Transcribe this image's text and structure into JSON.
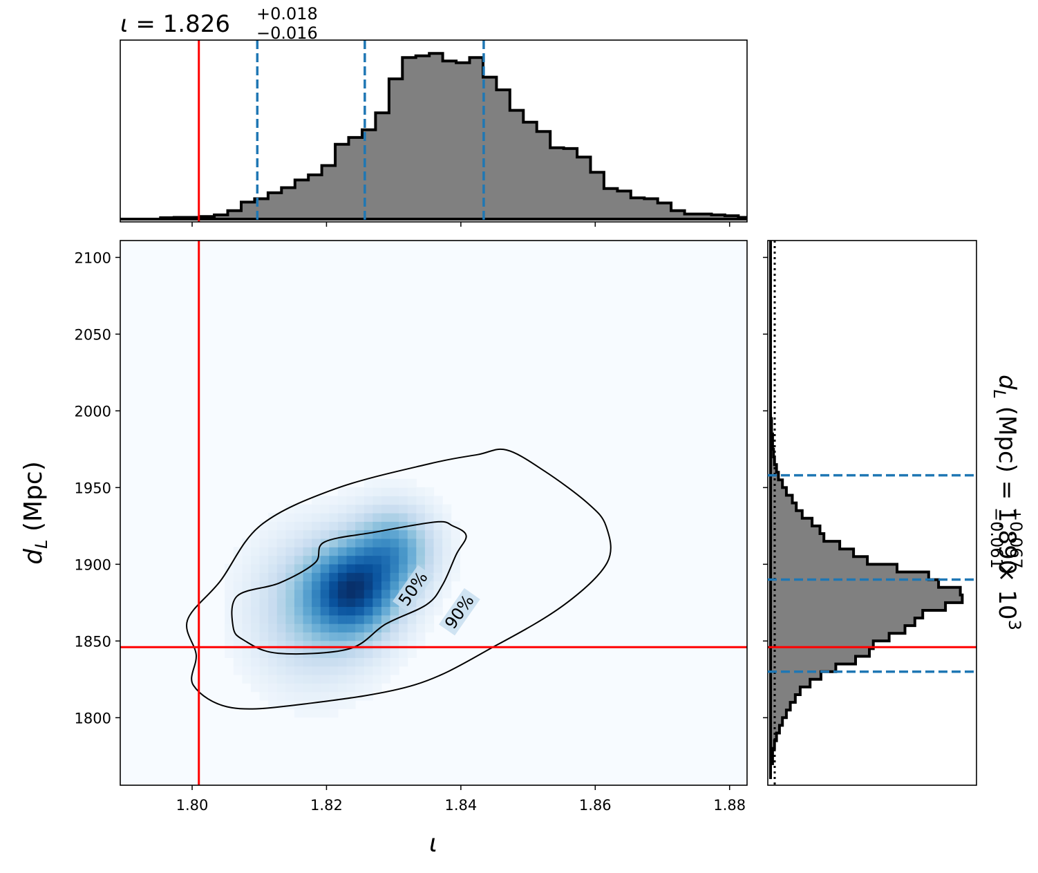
{
  "chart_data": {
    "type": "corner_plot",
    "top_title": {
      "param": "ι",
      "median": "1.826",
      "plus": "+0.018",
      "minus": "−0.016"
    },
    "right_title": {
      "param": "d",
      "sub": "L",
      "unit": "(Mpc)",
      "median": "1.890",
      "plus": "+0.067",
      "minus": "−0.061",
      "factor": "× 10",
      "exp": "3"
    },
    "xlabel": "ι",
    "ylabel": {
      "main": "d",
      "sub": "L",
      "unit": "(Mpc)"
    },
    "xlim": [
      1.7893,
      1.8826
    ],
    "ylim": [
      1756,
      2111
    ],
    "x_ticks": [
      1.8,
      1.82,
      1.84,
      1.86,
      1.88
    ],
    "x_tick_labels": [
      "1.80",
      "1.82",
      "1.84",
      "1.86",
      "1.88"
    ],
    "y_ticks": [
      1800,
      1850,
      1900,
      1950,
      2000,
      2050,
      2100
    ],
    "y_tick_labels": [
      "1800",
      "1850",
      "1900",
      "1950",
      "2000",
      "2050",
      "2100"
    ],
    "injection": {
      "x": 1.801,
      "y": 1846,
      "color": "#ff0000"
    },
    "x_quantiles": [
      1.8097,
      1.8257,
      1.8434
    ],
    "y_quantiles": [
      1830,
      1890,
      1958
    ],
    "quantile_color": "#1f77b4",
    "hist_color": "#808080",
    "contour_levels": [
      "50%",
      "90%"
    ],
    "x_hist": {
      "bin_start": 1.7893,
      "bin_width": 0.002,
      "counts": [
        0,
        0,
        0,
        0.008,
        0.01,
        0.01,
        0.015,
        0.025,
        0.05,
        0.1,
        0.12,
        0.155,
        0.185,
        0.23,
        0.26,
        0.315,
        0.44,
        0.48,
        0.525,
        0.625,
        0.825,
        0.95,
        0.96,
        0.975,
        0.93,
        0.92,
        0.95,
        0.835,
        0.76,
        0.64,
        0.57,
        0.515,
        0.42,
        0.415,
        0.365,
        0.275,
        0.18,
        0.165,
        0.125,
        0.12,
        0.095,
        0.05,
        0.03,
        0.03,
        0.025,
        0.02,
        0.01,
        0.01,
        0.005,
        0.005,
        0,
        0,
        0,
        0,
        0,
        0
      ]
    },
    "y_hist": {
      "bin_start": 1760,
      "bin_width": 5,
      "counts": [
        0,
        0,
        0.01,
        0.01,
        0.02,
        0.03,
        0.045,
        0.06,
        0.08,
        0.1,
        0.125,
        0.15,
        0.2,
        0.255,
        0.33,
        0.43,
        0.5,
        0.52,
        0.6,
        0.68,
        0.73,
        0.77,
        0.885,
        0.97,
        0.96,
        0.85,
        0.8,
        0.64,
        0.49,
        0.42,
        0.35,
        0.27,
        0.25,
        0.21,
        0.16,
        0.13,
        0.11,
        0.08,
        0.06,
        0.04,
        0.03,
        0.02,
        0.015,
        0.01,
        0.01,
        0.005,
        0.005,
        0,
        0,
        0,
        0,
        0,
        0,
        0,
        0,
        0,
        0,
        0,
        0,
        0,
        0,
        0,
        0,
        0,
        0,
        0,
        0,
        0,
        0,
        0,
        0
      ]
    },
    "density": {
      "components": [
        {
          "cx": 1.824,
          "cy": 1883,
          "sx": 0.0045,
          "sy": 20,
          "w": 1.0
        },
        {
          "cx": 1.83,
          "cy": 1910,
          "sx": 0.004,
          "sy": 18,
          "w": 0.6
        },
        {
          "cx": 1.818,
          "cy": 1870,
          "sx": 0.006,
          "sy": 30,
          "w": 0.35
        }
      ]
    },
    "contour_50": [
      [
        1.8061,
        1.8592
      ],
      [
        1.8067,
        1.8793
      ],
      [
        1.813,
        1.8878
      ],
      [
        1.8183,
        1.901
      ],
      [
        1.8197,
        1.9145
      ],
      [
        1.8273,
        1.921
      ],
      [
        1.8363,
        1.9276
      ],
      [
        1.8388,
        1.925
      ],
      [
        1.8408,
        1.9186
      ],
      [
        1.8393,
        1.9063
      ],
      [
        1.8373,
        1.8868
      ],
      [
        1.8349,
        1.8737
      ],
      [
        1.8288,
        1.861
      ],
      [
        1.8233,
        1.8448
      ],
      [
        1.8128,
        1.842
      ],
      [
        1.8077,
        1.8505
      ]
    ],
    "contour_90": [
      [
        1.8006,
        1.841
      ],
      [
        1.7993,
        1.8635
      ],
      [
        1.8042,
        1.8891
      ],
      [
        1.8102,
        1.9254
      ],
      [
        1.8213,
        1.9492
      ],
      [
        1.8353,
        1.9655
      ],
      [
        1.8425,
        1.9715
      ],
      [
        1.8468,
        1.9745
      ],
      [
        1.8524,
        1.9609
      ],
      [
        1.8588,
        1.9401
      ],
      [
        1.8616,
        1.925
      ],
      [
        1.8618,
        1.9013
      ],
      [
        1.8555,
        1.874
      ],
      [
        1.8454,
        1.8475
      ],
      [
        1.8332,
        1.8215
      ],
      [
        1.8168,
        1.809
      ],
      [
        1.8059,
        1.8065
      ],
      [
        1.8002,
        1.821
      ]
    ]
  }
}
